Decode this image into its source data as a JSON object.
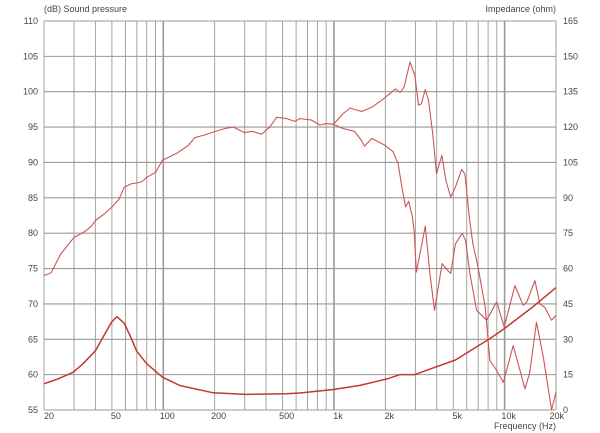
{
  "chart_data": {
    "type": "line",
    "title": "",
    "left_axis_title": "(dB)  Sound pressure",
    "right_axis_title": "Impedance  (ohm)",
    "xlabel": "Frequency  (Hz)",
    "x_scale": "log",
    "xlim": [
      20,
      20000
    ],
    "ylim_left": [
      55,
      110
    ],
    "ylim_right": [
      0,
      165
    ],
    "grid": true,
    "x_tick_labels": [
      {
        "v": 20,
        "t": "20"
      },
      {
        "v": 50,
        "t": "50"
      },
      {
        "v": 100,
        "t": "100"
      },
      {
        "v": 200,
        "t": "200"
      },
      {
        "v": 500,
        "t": "500"
      },
      {
        "v": 1000,
        "t": "1k"
      },
      {
        "v": 2000,
        "t": "2k"
      },
      {
        "v": 5000,
        "t": "5k"
      },
      {
        "v": 10000,
        "t": "10k"
      },
      {
        "v": 20000,
        "t": "20k"
      }
    ],
    "left_ticks": [
      55,
      60,
      65,
      70,
      75,
      80,
      85,
      90,
      95,
      100,
      105,
      110
    ],
    "right_ticks": [
      0,
      15,
      30,
      45,
      60,
      75,
      90,
      105,
      120,
      135,
      150,
      165
    ],
    "colors": {
      "spl": "#cc5555",
      "impedance": "#c0392b",
      "grid": "#9a9a9a"
    },
    "series": [
      {
        "axis": "left",
        "points": [
          [
            20,
            74.0
          ],
          [
            22,
            74.4
          ],
          [
            25,
            77
          ],
          [
            28,
            78.5
          ],
          [
            30,
            79.4
          ],
          [
            35,
            80.3
          ],
          [
            38,
            81
          ],
          [
            40,
            81.8
          ],
          [
            45,
            82.7
          ],
          [
            50,
            83.7
          ],
          [
            55,
            84.8
          ],
          [
            59,
            86.5
          ],
          [
            65,
            87.0
          ],
          [
            70,
            87.1
          ],
          [
            75,
            87.3
          ],
          [
            80,
            87.9
          ],
          [
            90,
            88.6
          ],
          [
            99,
            90.3
          ],
          [
            120,
            91.3
          ],
          [
            140,
            92.4
          ],
          [
            153,
            93.5
          ],
          [
            175,
            93.9
          ],
          [
            196,
            94.3
          ],
          [
            230,
            94.8
          ],
          [
            257,
            95.0
          ],
          [
            300,
            94.2
          ],
          [
            330,
            94.4
          ],
          [
            377,
            94.0
          ],
          [
            420,
            95.0
          ],
          [
            462,
            96.4
          ],
          [
            527,
            96.2
          ],
          [
            589,
            95.8
          ],
          [
            632,
            96.2
          ],
          [
            737,
            96.0
          ],
          [
            827,
            95.3
          ],
          [
            903,
            95.5
          ],
          [
            992,
            95.4
          ],
          [
            1130,
            96.9
          ],
          [
            1244,
            97.7
          ],
          [
            1451,
            97.2
          ],
          [
            1666,
            97.8
          ],
          [
            1950,
            99.0
          ],
          [
            2290,
            100.4
          ],
          [
            2440,
            99.9
          ],
          [
            2580,
            100.7
          ],
          [
            2790,
            104.2
          ],
          [
            2980,
            102.3
          ],
          [
            3130,
            98.1
          ],
          [
            3250,
            98.3
          ],
          [
            3430,
            100.3
          ],
          [
            3580,
            98.8
          ],
          [
            3790,
            94.1
          ],
          [
            3990,
            88.4
          ],
          [
            4120,
            89.6
          ],
          [
            4290,
            91.0
          ],
          [
            4520,
            87.5
          ],
          [
            4830,
            85.1
          ],
          [
            5150,
            86.5
          ],
          [
            5600,
            89.0
          ],
          [
            5850,
            88.4
          ],
          [
            6240,
            81.8
          ],
          [
            6520,
            78.5
          ],
          [
            6980,
            75.2
          ],
          [
            7700,
            69.5
          ],
          [
            7980,
            65.2
          ],
          [
            8200,
            62.0
          ],
          [
            8980,
            60.6
          ],
          [
            9820,
            58.9
          ],
          [
            11220,
            64.1
          ],
          [
            12300,
            60.6
          ],
          [
            13150,
            58.0
          ],
          [
            14000,
            60.2
          ],
          [
            15380,
            67.4
          ],
          [
            16860,
            62.5
          ],
          [
            18840,
            55.0
          ],
          [
            20000,
            57.5
          ]
        ]
      },
      {
        "axis": "left",
        "points": [
          [
            992,
            95.4
          ],
          [
            1130,
            94.8
          ],
          [
            1320,
            94.4
          ],
          [
            1450,
            93.1
          ],
          [
            1510,
            92.3
          ],
          [
            1666,
            93.4
          ],
          [
            2000,
            92.4
          ],
          [
            2220,
            91.5
          ],
          [
            2380,
            89.8
          ],
          [
            2480,
            87.0
          ],
          [
            2630,
            83.7
          ],
          [
            2740,
            84.5
          ],
          [
            2880,
            82.3
          ],
          [
            2950,
            80.4
          ],
          [
            3040,
            74.5
          ],
          [
            3430,
            81.0
          ],
          [
            3650,
            74.3
          ],
          [
            3880,
            69.1
          ],
          [
            4300,
            75.7
          ],
          [
            4520,
            75.0
          ],
          [
            4830,
            74.3
          ],
          [
            5150,
            78.5
          ],
          [
            5640,
            80.0
          ],
          [
            5900,
            79.0
          ],
          [
            6260,
            74.3
          ],
          [
            6850,
            69.1
          ],
          [
            7330,
            68.4
          ],
          [
            7840,
            67.7
          ],
          [
            8980,
            70.3
          ],
          [
            9940,
            66.7
          ],
          [
            11480,
            72.6
          ],
          [
            12850,
            69.8
          ],
          [
            13500,
            70.3
          ],
          [
            15040,
            73.3
          ],
          [
            16100,
            70.0
          ],
          [
            17200,
            69.5
          ],
          [
            18840,
            67.7
          ],
          [
            20000,
            68.4
          ]
        ]
      },
      {
        "axis": "right",
        "points": [
          [
            20,
            11.1
          ],
          [
            24,
            13.1
          ],
          [
            29.6,
            16
          ],
          [
            33.8,
            19.6
          ],
          [
            40,
            25.1
          ],
          [
            44.3,
            30.8
          ],
          [
            49.8,
            37.3
          ],
          [
            53.5,
            39.6
          ],
          [
            59.2,
            36.7
          ],
          [
            65,
            30.3
          ],
          [
            69.7,
            25.1
          ],
          [
            80,
            19.6
          ],
          [
            99,
            13.9
          ],
          [
            125,
            10.4
          ],
          [
            196,
            7.3
          ],
          [
            300,
            6.6
          ],
          [
            527,
            6.9
          ],
          [
            632,
            7.2
          ],
          [
            992,
            8.7
          ],
          [
            1410,
            10.4
          ],
          [
            2080,
            13.3
          ],
          [
            2440,
            15.0
          ],
          [
            2980,
            15.0
          ],
          [
            3830,
            17.9
          ],
          [
            5150,
            21.2
          ],
          [
            8200,
            30.3
          ],
          [
            9940,
            34.5
          ],
          [
            14500,
            43.5
          ],
          [
            20000,
            51.9
          ]
        ]
      }
    ]
  }
}
